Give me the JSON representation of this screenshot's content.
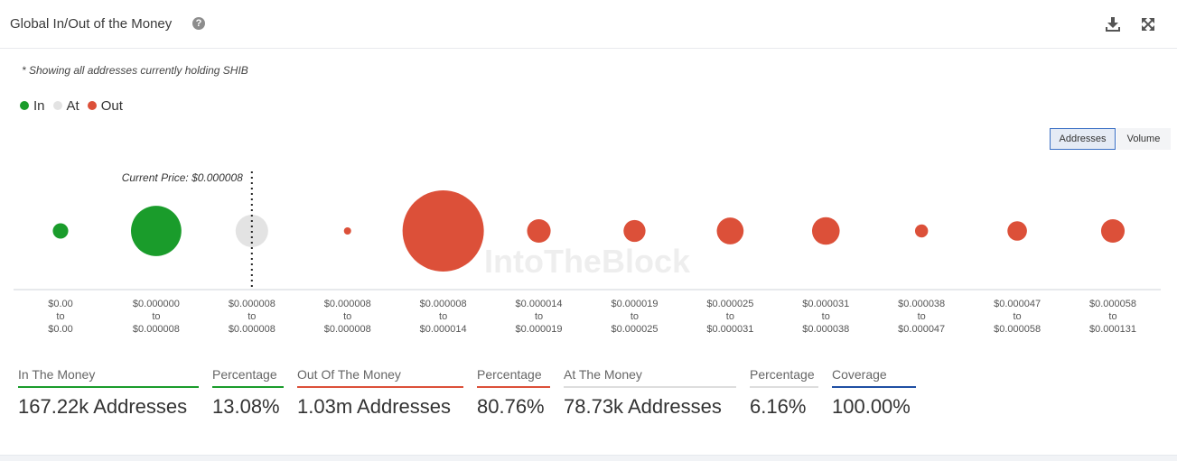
{
  "header": {
    "title": "Global In/Out of the Money",
    "help_icon": "question-circle-icon",
    "download_icon": "download-icon",
    "expand_icon": "expand-icon"
  },
  "note": "* Showing all addresses currently holding SHIB",
  "legend": [
    {
      "label": "In",
      "color": "#1a9c2b"
    },
    {
      "label": "At",
      "color": "#e3e3e3"
    },
    {
      "label": "Out",
      "color": "#dc5039"
    }
  ],
  "toggle": {
    "addresses_label": "Addresses",
    "volume_label": "Volume",
    "selected": "Addresses"
  },
  "watermark": "IntoTheBlock",
  "chart_data": {
    "type": "bubble",
    "title": "Global In/Out of the Money",
    "current_price_label": "Current Price: $0.000008",
    "current_price_category_index": 2,
    "buckets": [
      {
        "low": "$0.00",
        "high": "$0.00",
        "status": "In",
        "relative_size": 0.19
      },
      {
        "low": "$0.000000",
        "high": "$0.000008",
        "status": "In",
        "relative_size": 0.62
      },
      {
        "low": "$0.000008",
        "high": "$0.000008",
        "status": "At",
        "relative_size": 0.4
      },
      {
        "low": "$0.000008",
        "high": "$0.000008",
        "status": "Out",
        "relative_size": 0.08
      },
      {
        "low": "$0.000008",
        "high": "$0.000014",
        "status": "Out",
        "relative_size": 1.0
      },
      {
        "low": "$0.000014",
        "high": "$0.000019",
        "status": "Out",
        "relative_size": 0.29
      },
      {
        "low": "$0.000019",
        "high": "$0.000025",
        "status": "Out",
        "relative_size": 0.27
      },
      {
        "low": "$0.000025",
        "high": "$0.000031",
        "status": "Out",
        "relative_size": 0.33
      },
      {
        "low": "$0.000031",
        "high": "$0.000038",
        "status": "Out",
        "relative_size": 0.34
      },
      {
        "low": "$0.000038",
        "high": "$0.000047",
        "status": "Out",
        "relative_size": 0.16
      },
      {
        "low": "$0.000047",
        "high": "$0.000058",
        "status": "Out",
        "relative_size": 0.24
      },
      {
        "low": "$0.000058",
        "high": "$0.000131",
        "status": "Out",
        "relative_size": 0.29
      }
    ],
    "range_separator": "to",
    "status_colors": {
      "In": "#1a9c2b",
      "At": "#e3e3e3",
      "Out": "#dc5039"
    }
  },
  "stats": [
    {
      "label": "In The Money",
      "value": "167.22k Addresses",
      "color": "#1a9c2b"
    },
    {
      "label": "Percentage",
      "value": "13.08%",
      "color": "#1a9c2b"
    },
    {
      "label": "Out Of The Money",
      "value": "1.03m Addresses",
      "color": "#dc5039"
    },
    {
      "label": "Percentage",
      "value": "80.76%",
      "color": "#dc5039"
    },
    {
      "label": "At The Money",
      "value": "78.73k Addresses",
      "color": "#dddddd"
    },
    {
      "label": "Percentage",
      "value": "6.16%",
      "color": "#dddddd"
    },
    {
      "label": "Coverage",
      "value": "100.00%",
      "color": "#1f4fa3"
    }
  ]
}
